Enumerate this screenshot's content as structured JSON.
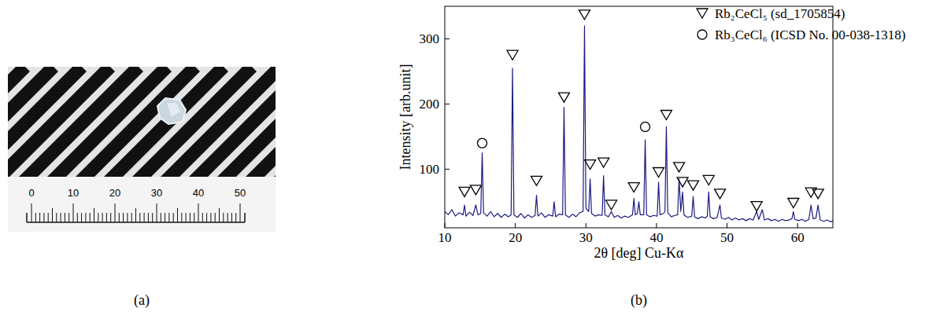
{
  "panel_labels": [
    "(a)",
    "(b)"
  ],
  "photo": {
    "ruler_labels": [
      0,
      10,
      20,
      30,
      40,
      50
    ]
  },
  "chart_data": {
    "type": "line",
    "x_label": "2θ [deg] Cu-Kα",
    "y_label": "Intensity [arb.unit]",
    "xlim": [
      10,
      65
    ],
    "xticks": [
      10,
      20,
      30,
      40,
      50,
      60
    ],
    "ylim": [
      10,
      350
    ],
    "yticks": [
      100,
      200,
      300
    ],
    "grid": false,
    "legend": "upper right",
    "series": [
      {
        "type": "line",
        "color": "#1c1c84",
        "line_style": "solid",
        "x": [
          10.0,
          10.5,
          11.0,
          11.5,
          12.0,
          12.6,
          12.8,
          13.0,
          13.5,
          14.0,
          14.4,
          14.7,
          15.1,
          15.3,
          15.5,
          16.0,
          16.5,
          17.0,
          17.5,
          18.0,
          18.5,
          19.0,
          19.4,
          19.6,
          19.8,
          20.3,
          20.8,
          21.3,
          21.8,
          22.3,
          22.8,
          23.0,
          23.2,
          23.7,
          24.2,
          24.7,
          25.3,
          25.5,
          25.7,
          26.2,
          26.7,
          26.9,
          27.1,
          27.6,
          28.1,
          28.6,
          29.1,
          29.6,
          29.8,
          30.0,
          30.4,
          30.6,
          30.8,
          31.3,
          31.8,
          32.3,
          32.5,
          32.7,
          33.2,
          33.6,
          34.0,
          34.5,
          35.0,
          35.5,
          36.0,
          36.6,
          36.8,
          37.0,
          37.3,
          37.5,
          37.7,
          38.2,
          38.4,
          38.6,
          39.1,
          39.6,
          40.1,
          40.3,
          40.5,
          41.0,
          41.2,
          41.4,
          41.6,
          42.1,
          42.6,
          43.0,
          43.2,
          43.45,
          43.7,
          43.9,
          44.4,
          45.0,
          45.2,
          45.4,
          45.9,
          46.4,
          46.9,
          47.2,
          47.4,
          47.6,
          48.1,
          48.6,
          49.0,
          49.2,
          49.7,
          50.2,
          50.7,
          51.2,
          51.7,
          52.2,
          52.7,
          53.2,
          53.7,
          54.2,
          54.5,
          55.0,
          55.3,
          55.8,
          56.3,
          56.8,
          57.3,
          57.8,
          58.3,
          58.8,
          59.2,
          59.4,
          59.6,
          60.1,
          60.6,
          61.1,
          61.6,
          61.9,
          62.2,
          62.6,
          62.9,
          63.2,
          63.7,
          64.2,
          64.7,
          65.0
        ],
        "values": [
          35,
          30,
          38,
          28,
          33,
          30,
          45,
          28,
          34,
          29,
          45,
          30,
          32,
          125,
          33,
          28,
          35,
          27,
          32,
          26,
          31,
          27,
          30,
          255,
          30,
          26,
          32,
          25,
          30,
          26,
          29,
          60,
          28,
          33,
          26,
          30,
          28,
          50,
          27,
          31,
          30,
          195,
          30,
          26,
          31,
          27,
          33,
          35,
          320,
          40,
          35,
          85,
          32,
          28,
          30,
          29,
          90,
          30,
          27,
          35,
          26,
          29,
          25,
          28,
          26,
          30,
          55,
          30,
          32,
          50,
          30,
          30,
          145,
          30,
          27,
          29,
          28,
          80,
          30,
          32,
          35,
          165,
          33,
          27,
          29,
          30,
          85,
          35,
          65,
          30,
          26,
          28,
          58,
          27,
          24,
          27,
          25,
          28,
          65,
          27,
          24,
          26,
          45,
          25,
          23,
          26,
          22,
          25,
          22,
          24,
          21,
          24,
          22,
          35,
          23,
          38,
          22,
          24,
          21,
          23,
          20,
          23,
          21,
          22,
          24,
          35,
          23,
          21,
          23,
          20,
          23,
          45,
          24,
          25,
          45,
          22,
          20,
          22,
          19,
          21
        ]
      },
      {
        "name": "Rb₂CeCl₅ (sd_1705854)",
        "type": "scatter",
        "marker": "triangle-down",
        "color": "#000000",
        "x": [
          12.8,
          14.4,
          19.6,
          23.0,
          26.9,
          29.8,
          30.6,
          32.5,
          33.6,
          36.8,
          40.3,
          41.4,
          43.2,
          43.7,
          45.2,
          47.4,
          49.0,
          54.2,
          59.4,
          61.9,
          62.9
        ],
        "values": [
          65,
          68,
          275,
          82,
          210,
          337,
          107,
          110,
          45,
          72,
          95,
          183,
          103,
          80,
          75,
          83,
          62,
          43,
          48,
          64,
          62
        ]
      },
      {
        "name": "Rb₃CeCl₆ (ICSD No. 00-038-1318)",
        "type": "scatter",
        "marker": "circle",
        "color": "#000000",
        "x": [
          15.3,
          38.4
        ],
        "values": [
          140,
          165
        ]
      }
    ]
  }
}
